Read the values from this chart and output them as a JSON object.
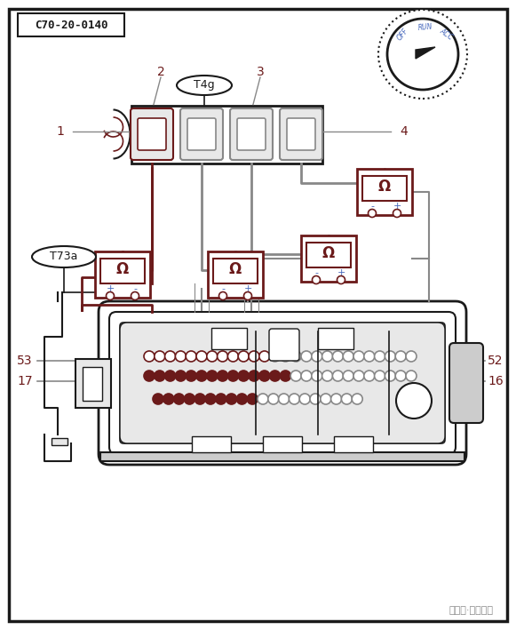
{
  "title_box": "C70-20-0140",
  "label_2": "2",
  "label_3": "3",
  "label_1": "1",
  "label_4": "4",
  "label_T4g": "T4g",
  "label_T73a": "T73a",
  "label_53": "53",
  "label_17": "17",
  "label_52": "52",
  "label_16": "16",
  "watermark": "中华网·汽车频道",
  "bg_color": "#ffffff",
  "border_color": "#1a1a1a",
  "dark_brown": "#6b1a1a",
  "gray_wire": "#888888",
  "blue_text": "#4466bb",
  "run_text": "RUN",
  "off_text": "OFF",
  "acc_text": "ACC",
  "omega": "Ω",
  "light_gray": "#e8e8e8",
  "mid_gray": "#cccccc"
}
